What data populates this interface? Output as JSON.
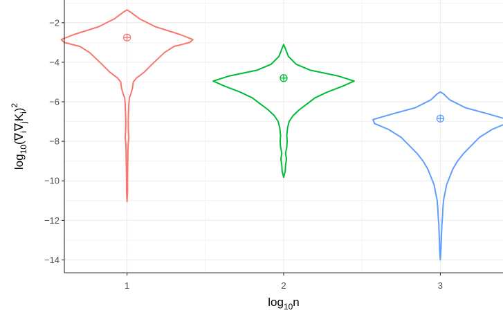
{
  "chart_data": {
    "type": "violin",
    "xlabel": {
      "base": "log",
      "sub": "10",
      "rest": "n"
    },
    "ylabel": {
      "pre": "log",
      "sub1": "10",
      "mid1": "(∇",
      "sub2": "i",
      "mid2": "∇",
      "sub3": "j",
      "mid3": "K",
      "sub4": "i",
      "close": ")",
      "sup": "2"
    },
    "categories": [
      "1",
      "2",
      "3"
    ],
    "x_values": [
      1,
      2,
      3
    ],
    "yticks": [
      -2,
      -4,
      -6,
      -8,
      -10,
      -12,
      -14
    ],
    "ytick_labels": [
      "−2",
      "−4",
      "−6",
      "−8",
      "−10",
      "−12",
      "−14"
    ],
    "xlim": [
      0.6,
      3.4
    ],
    "ylim": [
      -14.65,
      -0.85
    ],
    "grid": true,
    "legend": "none",
    "series": [
      {
        "color": "#F8766D",
        "mean": -2.75,
        "profile": [
          [
            -1.35,
            0.0
          ],
          [
            -1.45,
            0.02
          ],
          [
            -1.8,
            0.08
          ],
          [
            -2.2,
            0.18
          ],
          [
            -2.6,
            0.34
          ],
          [
            -2.85,
            0.42
          ],
          [
            -3.0,
            0.4
          ],
          [
            -3.2,
            0.3
          ],
          [
            -3.5,
            0.24
          ],
          [
            -3.8,
            0.2
          ],
          [
            -4.1,
            0.16
          ],
          [
            -4.5,
            0.11
          ],
          [
            -4.8,
            0.06
          ],
          [
            -5.0,
            0.04
          ],
          [
            -5.3,
            0.035
          ],
          [
            -5.6,
            0.025
          ],
          [
            -5.8,
            0.015
          ],
          [
            -6.1,
            0.012
          ],
          [
            -6.5,
            0.01
          ],
          [
            -7.0,
            0.008
          ],
          [
            -7.5,
            0.009
          ],
          [
            -7.8,
            0.012
          ],
          [
            -8.1,
            0.008
          ],
          [
            -8.5,
            0.006
          ],
          [
            -9.0,
            0.005
          ],
          [
            -9.5,
            0.004
          ],
          [
            -10.0,
            0.003
          ],
          [
            -10.5,
            0.003
          ],
          [
            -11.05,
            0.0
          ]
        ]
      },
      {
        "color": "#00BA38",
        "mean": -4.8,
        "profile": [
          [
            -3.1,
            0.0
          ],
          [
            -3.3,
            0.01
          ],
          [
            -3.7,
            0.03
          ],
          [
            -4.1,
            0.08
          ],
          [
            -4.4,
            0.17
          ],
          [
            -4.7,
            0.35
          ],
          [
            -4.95,
            0.45
          ],
          [
            -5.2,
            0.38
          ],
          [
            -5.5,
            0.28
          ],
          [
            -5.8,
            0.2
          ],
          [
            -6.1,
            0.15
          ],
          [
            -6.4,
            0.1
          ],
          [
            -6.7,
            0.06
          ],
          [
            -7.0,
            0.035
          ],
          [
            -7.3,
            0.025
          ],
          [
            -7.7,
            0.02
          ],
          [
            -8.0,
            0.022
          ],
          [
            -8.3,
            0.02
          ],
          [
            -8.6,
            0.012
          ],
          [
            -8.9,
            0.018
          ],
          [
            -9.2,
            0.012
          ],
          [
            -9.5,
            0.01
          ],
          [
            -9.82,
            0.0
          ]
        ]
      },
      {
        "color": "#619CFF",
        "mean": -6.85,
        "profile": [
          [
            -5.5,
            0.0
          ],
          [
            -5.6,
            0.02
          ],
          [
            -5.9,
            0.06
          ],
          [
            -6.3,
            0.16
          ],
          [
            -6.6,
            0.3
          ],
          [
            -6.9,
            0.43
          ],
          [
            -7.1,
            0.42
          ],
          [
            -7.4,
            0.33
          ],
          [
            -7.8,
            0.25
          ],
          [
            -8.2,
            0.2
          ],
          [
            -8.6,
            0.15
          ],
          [
            -9.0,
            0.11
          ],
          [
            -9.4,
            0.08
          ],
          [
            -9.8,
            0.06
          ],
          [
            -10.2,
            0.04
          ],
          [
            -10.6,
            0.03
          ],
          [
            -11.0,
            0.02
          ],
          [
            -11.4,
            0.016
          ],
          [
            -11.8,
            0.014
          ],
          [
            -12.2,
            0.01
          ],
          [
            -12.6,
            0.008
          ],
          [
            -13.0,
            0.006
          ],
          [
            -13.5,
            0.004
          ],
          [
            -14.0,
            0.0
          ]
        ]
      }
    ]
  }
}
